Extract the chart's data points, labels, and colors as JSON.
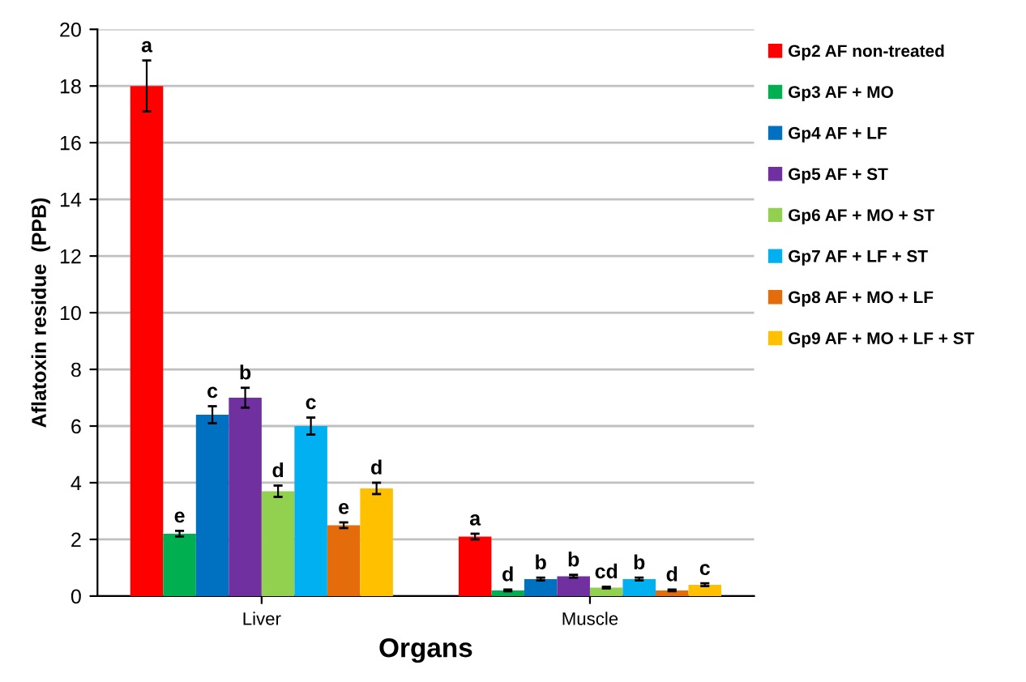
{
  "chart_data": {
    "type": "bar",
    "xlabel": "Organs",
    "ylabel": "Aflatoxin residue  (PPB)",
    "categories": [
      "Liver",
      "Muscle"
    ],
    "ylim": [
      0,
      20
    ],
    "yticks": [
      0,
      2,
      4,
      6,
      8,
      10,
      12,
      14,
      16,
      18,
      20
    ],
    "grid": "y",
    "legend": "right",
    "series": [
      {
        "name": "Gp2 AF non-treated",
        "color": "#ff0000",
        "values": [
          18,
          2.1
        ],
        "errors": [
          0.9,
          0.1
        ],
        "value_labels": [
          "a",
          "a"
        ]
      },
      {
        "name": "Gp3 AF + MO",
        "color": "#00b050",
        "values": [
          2.2,
          0.2
        ],
        "errors": [
          0.1,
          0.03
        ],
        "value_labels": [
          "e",
          "d"
        ]
      },
      {
        "name": "Gp4 AF + LF",
        "color": "#0070c0",
        "values": [
          6.4,
          0.6
        ],
        "errors": [
          0.3,
          0.05
        ],
        "value_labels": [
          "c",
          "b"
        ]
      },
      {
        "name": "Gp5 AF + ST",
        "color": "#7030a0",
        "values": [
          7.0,
          0.7
        ],
        "errors": [
          0.35,
          0.05
        ],
        "value_labels": [
          "b",
          "b"
        ]
      },
      {
        "name": "Gp6 AF + MO + ST",
        "color": "#92d050",
        "values": [
          3.7,
          0.3
        ],
        "errors": [
          0.2,
          0.03
        ],
        "value_labels": [
          "d",
          "cd"
        ]
      },
      {
        "name": "Gp7 AF + LF + ST",
        "color": "#00b0f0",
        "values": [
          6.0,
          0.6
        ],
        "errors": [
          0.3,
          0.05
        ],
        "value_labels": [
          "c",
          "b"
        ]
      },
      {
        "name": "Gp8 AF + MO + LF",
        "color": "#e46c0a",
        "values": [
          2.5,
          0.2
        ],
        "errors": [
          0.1,
          0.03
        ],
        "value_labels": [
          "e",
          "d"
        ]
      },
      {
        "name": "Gp9 AF + MO + LF + ST",
        "color": "#ffc000",
        "values": [
          3.8,
          0.4
        ],
        "errors": [
          0.2,
          0.05
        ],
        "value_labels": [
          "d",
          "c"
        ]
      }
    ]
  }
}
